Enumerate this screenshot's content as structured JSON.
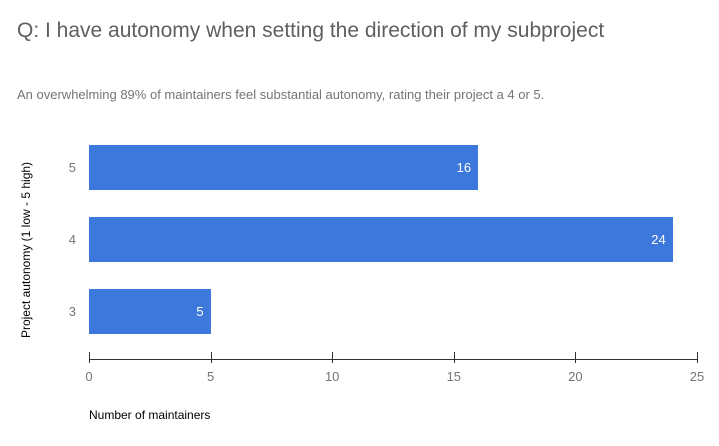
{
  "header": {
    "title": "Q: I have autonomy when setting the direction of my subproject",
    "subtitle": "An overwhelming 89% of maintainers feel substantial autonomy, rating their project a 4 or 5."
  },
  "chart_data": {
    "type": "bar",
    "orientation": "horizontal",
    "title": "Q: I have autonomy when setting the direction of my subproject",
    "subtitle": "An overwhelming 89% of maintainers feel substantial autonomy, rating their project a 4 or 5.",
    "categories": [
      "5",
      "4",
      "3"
    ],
    "values": [
      16,
      24,
      5
    ],
    "data_labels": [
      "16",
      "24",
      "5"
    ],
    "xlabel": "Number of maintainers",
    "ylabel": "Project autonomy (1 low - 5 high)",
    "xlim": [
      0,
      25
    ],
    "xticks": [
      0,
      5,
      10,
      15,
      20,
      25
    ],
    "grid": false,
    "legend": "none"
  },
  "colors": {
    "background": "#ffffff",
    "bar": "#3d78dd",
    "data_label": "#ffffff",
    "title": "#5f5f5f",
    "subtitle": "#757575",
    "axis_line": "#333333",
    "tick": "#333333",
    "tick_label": "#757575",
    "category_label": "#757575",
    "axis_title": "#000000"
  }
}
